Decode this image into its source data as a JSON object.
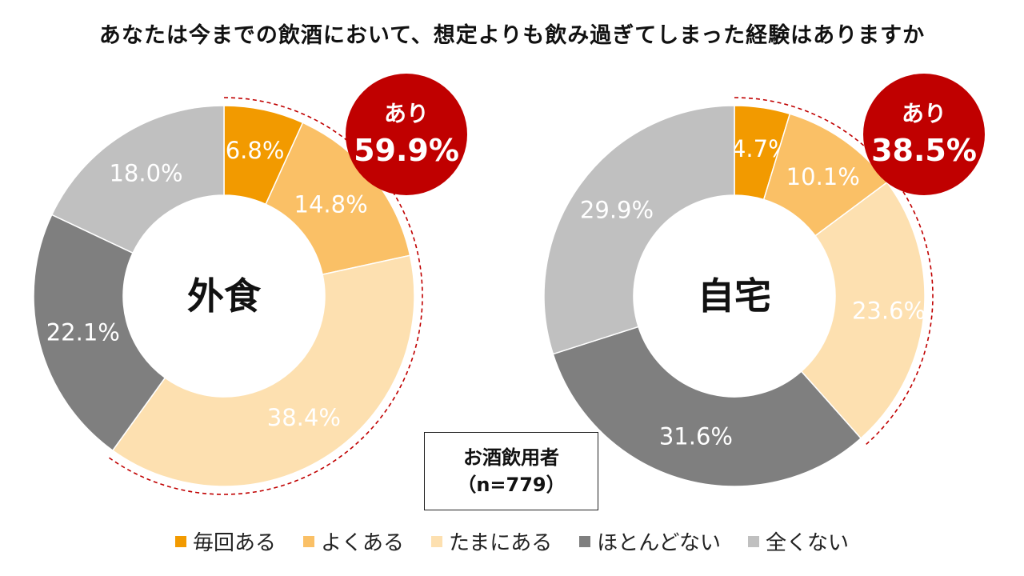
{
  "chart_data": {
    "type": "donut",
    "title": "あなたは今までの飲酒において、想定よりも飲み過ぎてしまった経験はありますか",
    "legend_position": "bottom",
    "categories": [
      "毎回ある",
      "よくある",
      "たまにある",
      "ほとんどない",
      "全くない"
    ],
    "colors": [
      "#f29a00",
      "#fac066",
      "#fde0b0",
      "#7f7f7f",
      "#c0c0c0"
    ],
    "charts": [
      {
        "label": "外食",
        "values": [
          6.8,
          14.8,
          38.4,
          22.1,
          18.0
        ],
        "value_labels": [
          "6.8%",
          "14.8%",
          "38.4%",
          "22.1%",
          "18.0%"
        ],
        "highlight": {
          "label": "あり",
          "value": "59.9%"
        }
      },
      {
        "label": "自宅",
        "values": [
          4.7,
          10.1,
          23.6,
          31.6,
          29.9
        ],
        "value_labels": [
          "4.7%",
          "10.1%",
          "23.6%",
          "31.6%",
          "29.9%"
        ],
        "highlight": {
          "label": "あり",
          "value": "38.5%"
        }
      }
    ],
    "sample": {
      "line1": "お酒飲用者",
      "line2": "（n=779）"
    }
  },
  "theme": {
    "badge_color": "#c00000",
    "dash_color": "#c00000"
  }
}
